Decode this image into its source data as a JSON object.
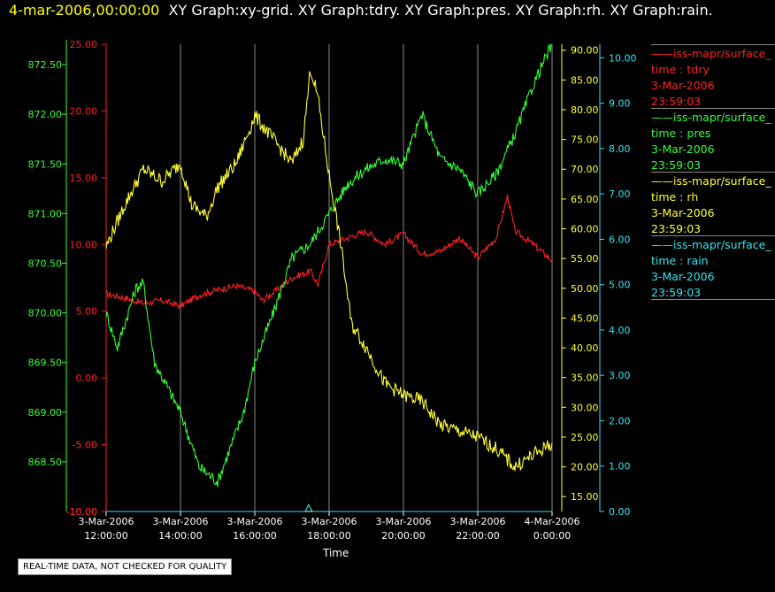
{
  "header": {
    "date": "4-mar-2006,00:00:00",
    "titles": "XY Graph:xy-grid.  XY Graph:tdry.  XY Graph:pres.  XY Graph:rh.  XY Graph:rain."
  },
  "legend": [
    {
      "name": "——iss-mapr/surface_",
      "axis": "time : tdry",
      "date": "3-Mar-2006",
      "time": "23:59:03",
      "color": "#ff2020"
    },
    {
      "name": "——iss-mapr/surface_",
      "axis": "time : pres",
      "date": "3-Mar-2006",
      "time": "23:59:03",
      "color": "#33ff33"
    },
    {
      "name": "——iss-mapr/surface_",
      "axis": "time : rh",
      "date": "3-Mar-2006",
      "time": "23:59:03",
      "color": "#ffff33"
    },
    {
      "name": "——iss-mapr/surface_",
      "axis": "time : rain",
      "date": "3-Mar-2006",
      "time": "23:59:03",
      "color": "#33e6f0"
    }
  ],
  "notice": "REAL-TIME DATA, NOT CHECKED FOR QUALITY",
  "chart_data": {
    "type": "line",
    "xlabel": "Time",
    "x_ticks": [
      [
        "3-Mar-2006",
        "12:00:00"
      ],
      [
        "3-Mar-2006",
        "14:00:00"
      ],
      [
        "3-Mar-2006",
        "16:00:00"
      ],
      [
        "3-Mar-2006",
        "18:00:00"
      ],
      [
        "3-Mar-2006",
        "20:00:00"
      ],
      [
        "3-Mar-2006",
        "22:00:00"
      ],
      [
        "4-Mar-2006",
        "0:00:00"
      ]
    ],
    "x_hours": [
      0,
      2,
      4,
      6,
      8,
      10,
      12
    ],
    "xlim_hours_from_12": [
      0,
      12
    ],
    "grid": "vertical",
    "axes": {
      "pres": {
        "ylim": [
          868.0,
          872.75
        ],
        "ticks": [
          "868.50",
          "869.00",
          "869.50",
          "870.00",
          "870.50",
          "871.00",
          "871.50",
          "872.00",
          "872.50"
        ],
        "color": "#33ff33"
      },
      "tdry": {
        "ylim": [
          -10,
          25
        ],
        "ticks": [
          "-10.00",
          "-5.00",
          "0.00",
          "5.00",
          "10.00",
          "15.00",
          "20.00",
          "25.00"
        ],
        "color": "#ff2020"
      },
      "rh": {
        "ylim": [
          12.5,
          91
        ],
        "ticks": [
          "15.00",
          "20.00",
          "25.00",
          "30.00",
          "35.00",
          "40.00",
          "45.00",
          "50.00",
          "55.00",
          "60.00",
          "65.00",
          "70.00",
          "75.00",
          "80.00",
          "85.00",
          "90.00"
        ],
        "color": "#ffff33"
      },
      "rain": {
        "ylim": [
          0,
          10.3
        ],
        "ticks": [
          "0.00",
          "1.00",
          "2.00",
          "3.00",
          "4.00",
          "5.00",
          "6.00",
          "7.00",
          "8.00",
          "9.00",
          "10.00"
        ],
        "color": "#33e6f0"
      }
    },
    "series": [
      {
        "name": "tdry",
        "axis": "tdry",
        "color": "#ff2020",
        "points": [
          [
            0,
            6.3
          ],
          [
            0.5,
            6.0
          ],
          [
            1,
            5.6
          ],
          [
            1.5,
            5.8
          ],
          [
            2,
            5.4
          ],
          [
            2.5,
            6.2
          ],
          [
            3,
            6.6
          ],
          [
            3.5,
            6.9
          ],
          [
            4,
            6.5
          ],
          [
            4.2,
            5.8
          ],
          [
            4.5,
            6.4
          ],
          [
            5,
            7.5
          ],
          [
            5.5,
            8.0
          ],
          [
            5.7,
            7.0
          ],
          [
            6,
            10.0
          ],
          [
            6.5,
            10.5
          ],
          [
            7,
            11.0
          ],
          [
            7.5,
            10.0
          ],
          [
            8,
            10.8
          ],
          [
            8.5,
            9.3
          ],
          [
            9,
            9.5
          ],
          [
            9.5,
            10.5
          ],
          [
            10,
            9.0
          ],
          [
            10.5,
            10.5
          ],
          [
            10.8,
            13.6
          ],
          [
            11,
            11.0
          ],
          [
            11.5,
            10.0
          ],
          [
            12,
            8.8
          ]
        ]
      },
      {
        "name": "pres",
        "axis": "pres",
        "color": "#33ff33",
        "points": [
          [
            0,
            870.0
          ],
          [
            0.3,
            869.65
          ],
          [
            0.8,
            870.25
          ],
          [
            1,
            870.3
          ],
          [
            1.3,
            869.5
          ],
          [
            2,
            869.0
          ],
          [
            2.5,
            868.45
          ],
          [
            3,
            868.3
          ],
          [
            3.3,
            868.6
          ],
          [
            3.7,
            869.0
          ],
          [
            4,
            869.5
          ],
          [
            4.5,
            870.0
          ],
          [
            5,
            870.55
          ],
          [
            5.5,
            870.7
          ],
          [
            6,
            871.0
          ],
          [
            6.5,
            871.3
          ],
          [
            7,
            871.45
          ],
          [
            7.5,
            871.55
          ],
          [
            8,
            871.5
          ],
          [
            8.5,
            872.0
          ],
          [
            9,
            871.55
          ],
          [
            9.5,
            871.45
          ],
          [
            10,
            871.2
          ],
          [
            10.5,
            871.4
          ],
          [
            11,
            871.8
          ],
          [
            11.5,
            872.3
          ],
          [
            11.8,
            872.55
          ],
          [
            12,
            872.7
          ]
        ]
      },
      {
        "name": "rh",
        "axis": "rh",
        "color": "#ffff33",
        "points": [
          [
            0,
            57
          ],
          [
            0.5,
            64
          ],
          [
            1,
            70
          ],
          [
            1.5,
            68
          ],
          [
            2,
            71
          ],
          [
            2.3,
            64
          ],
          [
            2.7,
            62
          ],
          [
            3,
            67
          ],
          [
            3.5,
            71
          ],
          [
            4,
            79
          ],
          [
            4.5,
            75
          ],
          [
            5,
            71
          ],
          [
            5.3,
            75
          ],
          [
            5.5,
            87
          ],
          [
            5.7,
            82
          ],
          [
            6,
            69
          ],
          [
            6.3,
            58
          ],
          [
            6.6,
            44
          ],
          [
            7,
            40
          ],
          [
            7.5,
            34
          ],
          [
            8,
            32
          ],
          [
            8.5,
            31
          ],
          [
            9,
            27
          ],
          [
            9.5,
            26
          ],
          [
            10,
            25
          ],
          [
            10.5,
            23
          ],
          [
            11,
            20
          ],
          [
            11.5,
            22
          ],
          [
            12,
            24
          ]
        ]
      },
      {
        "name": "rain",
        "axis": "rain",
        "color": "#33e6f0",
        "points": [
          [
            0,
            0
          ],
          [
            5.35,
            0
          ],
          [
            5.45,
            0.15
          ],
          [
            5.55,
            0
          ],
          [
            12,
            0
          ]
        ]
      }
    ]
  }
}
